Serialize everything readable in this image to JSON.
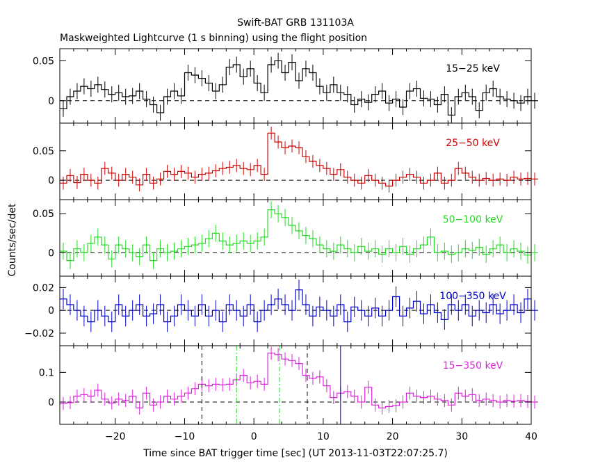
{
  "title": "Swift-BAT GRB 131103A",
  "subtitle": "Maskweighted Lightcurve (1 s binning) using the flight position",
  "xlabel": "Time since BAT trigger time [sec] (UT 2013-11-03T22:07:25.7)",
  "ylabel": "Counts/sec/det",
  "colors": {
    "axes": "#000000",
    "zero_line": "#000000"
  },
  "chart_data": {
    "type": "line",
    "step": true,
    "error_bars": true,
    "xlim": [
      -28,
      40
    ],
    "xticks": [
      -20,
      -10,
      0,
      10,
      20,
      30,
      40
    ],
    "xtick_labels": [
      "−20",
      "−10",
      "0",
      "10",
      "20",
      "30",
      "40"
    ],
    "x_start": -28,
    "bin_width": 1,
    "panels": [
      {
        "band": "15−25 keV",
        "color": "#000000",
        "ylim": [
          -0.028,
          0.065
        ],
        "yticks": [
          0,
          0.05
        ],
        "ytick_labels": [
          "0",
          "0.05"
        ],
        "err": 0.01,
        "values": [
          -0.01,
          0.005,
          0.012,
          0.018,
          0.015,
          0.02,
          0.014,
          0.008,
          0.01,
          0.005,
          0.006,
          0.012,
          0.002,
          -0.005,
          -0.015,
          0.005,
          0.012,
          0.006,
          0.035,
          0.032,
          0.028,
          0.022,
          0.012,
          0.02,
          0.042,
          0.045,
          0.03,
          0.04,
          0.022,
          0.01,
          0.045,
          0.05,
          0.035,
          0.048,
          0.025,
          0.04,
          0.035,
          0.018,
          0.01,
          0.02,
          0.01,
          0.008,
          -0.005,
          0.002,
          -0.002,
          0.008,
          0.012,
          -0.003,
          0.002,
          -0.008,
          0.012,
          0.015,
          0.003,
          0.002,
          -0.005,
          0.008,
          -0.018,
          0.005,
          0.01,
          0.005,
          -0.012,
          0.01,
          0.015,
          0.005,
          0.002,
          0.0,
          -0.003,
          0.005,
          0.0
        ]
      },
      {
        "band": "25−50 keV",
        "color": "#cc0000",
        "ylim": [
          -0.033,
          0.097
        ],
        "yticks": [
          0,
          0.05
        ],
        "ytick_labels": [
          "0",
          "0.05"
        ],
        "err": 0.011,
        "values": [
          -0.005,
          0.008,
          -0.004,
          0.01,
          0.0,
          -0.005,
          0.02,
          0.012,
          0.0,
          0.01,
          0.005,
          -0.008,
          0.01,
          -0.005,
          0.002,
          0.015,
          0.01,
          0.015,
          0.012,
          0.005,
          0.01,
          0.012,
          0.016,
          0.02,
          0.022,
          0.025,
          0.02,
          0.018,
          0.025,
          0.01,
          0.08,
          0.065,
          0.055,
          0.058,
          0.055,
          0.04,
          0.032,
          0.025,
          0.02,
          0.01,
          0.018,
          0.005,
          0.0,
          -0.005,
          0.008,
          0.0,
          -0.005,
          -0.01,
          0.0,
          0.005,
          0.01,
          0.005,
          -0.005,
          0.0,
          0.012,
          -0.005,
          0.0,
          0.02,
          0.012,
          0.005,
          0.0,
          0.003,
          0.0,
          0.002,
          0.0,
          0.005,
          0.002,
          0.003,
          0.002
        ]
      },
      {
        "band": "50−100 keV",
        "color": "#22dd22",
        "ylim": [
          -0.03,
          0.068
        ],
        "yticks": [
          0,
          0.05
        ],
        "ytick_labels": [
          "0",
          "0.05"
        ],
        "err": 0.011,
        "values": [
          0.002,
          -0.01,
          0.005,
          0.0,
          0.012,
          0.02,
          0.01,
          -0.008,
          0.01,
          0.005,
          0.0,
          -0.005,
          0.01,
          -0.01,
          0.005,
          0.0,
          0.002,
          0.005,
          0.008,
          0.01,
          0.012,
          0.018,
          0.025,
          0.015,
          0.01,
          0.012,
          0.015,
          0.012,
          0.015,
          0.02,
          0.055,
          0.05,
          0.045,
          0.035,
          0.028,
          0.022,
          0.018,
          0.01,
          0.005,
          0.002,
          0.01,
          0.005,
          0.0,
          0.008,
          0.002,
          0.005,
          -0.002,
          0.005,
          0.0,
          0.008,
          -0.002,
          0.005,
          0.01,
          0.02,
          0.0,
          0.002,
          -0.002,
          0.0,
          0.005,
          0.003,
          0.007,
          -0.002,
          0.005,
          0.01,
          0.0,
          0.005,
          0.002,
          -0.003,
          0.0
        ]
      },
      {
        "band": "100−350 keV",
        "color": "#0000cc",
        "ylim": [
          -0.031,
          0.03
        ],
        "yticks": [
          -0.02,
          0,
          0.02
        ],
        "ytick_labels": [
          "−0.02",
          "0",
          "0.02"
        ],
        "err": 0.009,
        "values": [
          0.01,
          0.005,
          0.0,
          -0.005,
          -0.01,
          0.0,
          -0.005,
          -0.01,
          0.005,
          -0.005,
          0.0,
          0.005,
          -0.005,
          -0.003,
          0.005,
          -0.01,
          -0.005,
          0.005,
          0.0,
          -0.005,
          0.005,
          -0.005,
          0.0,
          -0.01,
          0.005,
          0.0,
          -0.005,
          0.005,
          -0.01,
          0.0,
          0.005,
          0.01,
          0.005,
          0.0,
          0.018,
          0.005,
          -0.005,
          0.003,
          0.0,
          -0.005,
          0.005,
          -0.01,
          0.003,
          0.0,
          -0.005,
          0.002,
          -0.005,
          0.0,
          0.012,
          -0.005,
          0.002,
          0.008,
          -0.003,
          0.005,
          -0.002,
          -0.008,
          0.005,
          0.0,
          0.005,
          -0.005,
          0.0,
          -0.002,
          0.005,
          -0.003,
          0.0,
          0.005,
          -0.002,
          0.01,
          0.0
        ]
      },
      {
        "band": "15−350 keV",
        "color": "#dd22dd",
        "ylim": [
          -0.075,
          0.19
        ],
        "yticks": [
          0,
          0.1
        ],
        "ytick_labels": [
          "0",
          "0.1"
        ],
        "err": 0.022,
        "values": [
          -0.005,
          -0.002,
          0.02,
          0.025,
          0.02,
          0.04,
          0.01,
          -0.003,
          0.01,
          0.005,
          0.02,
          -0.02,
          0.03,
          -0.01,
          0.0,
          0.02,
          0.01,
          0.02,
          0.03,
          0.045,
          0.06,
          0.055,
          0.06,
          0.058,
          0.06,
          0.075,
          0.09,
          0.065,
          0.07,
          0.06,
          0.165,
          0.16,
          0.145,
          0.14,
          0.13,
          0.09,
          0.08,
          0.085,
          0.055,
          0.015,
          0.03,
          0.035,
          0.02,
          0.0,
          0.05,
          -0.01,
          -0.02,
          -0.015,
          -0.012,
          0.0,
          0.03,
          0.02,
          0.015,
          0.02,
          0.01,
          0.005,
          -0.01,
          0.03,
          0.02,
          0.025,
          0.005,
          0.01,
          0.005,
          0.0,
          0.005,
          0.003,
          0.005,
          0.002,
          0.0
        ]
      }
    ],
    "markers": [
      {
        "x": -7.5,
        "color": "#000000",
        "style": "dashed"
      },
      {
        "x": 7.7,
        "color": "#000000",
        "style": "dashed"
      },
      {
        "x": -2.5,
        "color": "#22dd22",
        "style": "dashdot"
      },
      {
        "x": 3.7,
        "color": "#22dd22",
        "style": "dashdot"
      },
      {
        "x": 12.5,
        "color": "#0000cc",
        "style": "solid"
      }
    ]
  }
}
